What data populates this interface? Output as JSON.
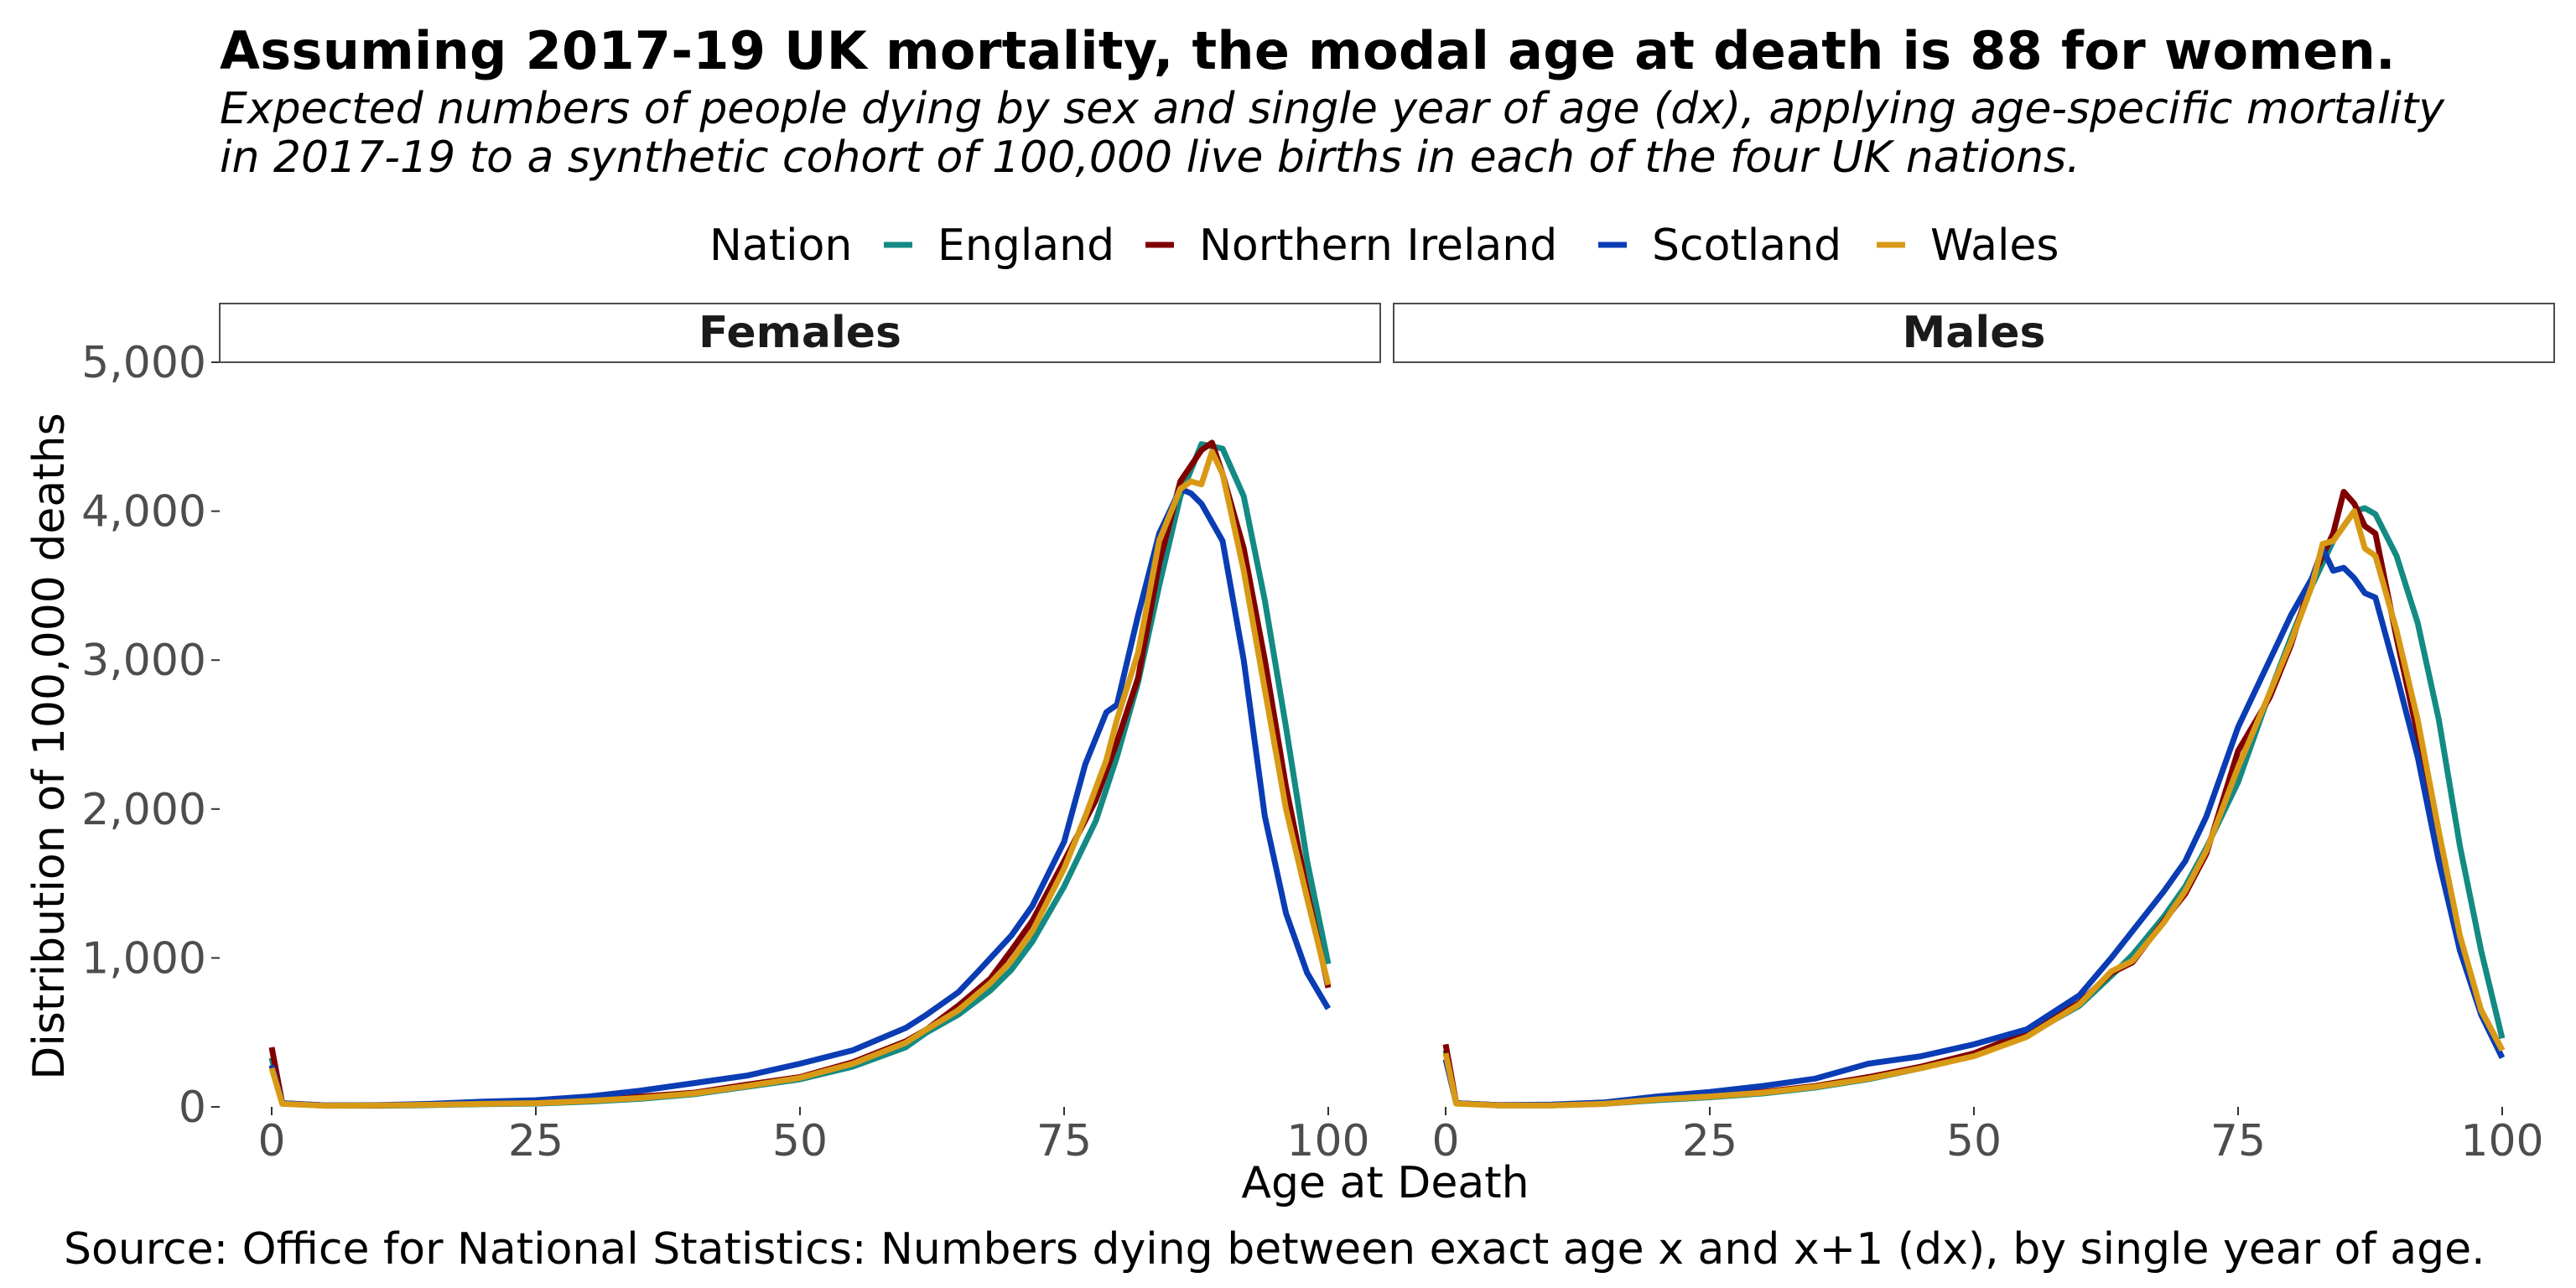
{
  "title": "Assuming 2017-19 UK mortality, the modal age at death is 88 for women.",
  "subtitle_line1": "Expected numbers of people dying by sex and single year of age (dx), applying age-specific mortality",
  "subtitle_line2": "in 2017-19 to a synthetic cohort of 100,000 live births in each of the four UK nations.",
  "caption": "Source: Office for National Statistics: Numbers dying between exact age x and x+1 (dx), by single year of age.",
  "chart_data": {
    "type": "line",
    "xlabel": "Age at Death",
    "ylabel": "Distribution of 100,000 deaths",
    "xlim": [
      0,
      100
    ],
    "ylim": [
      0,
      5000
    ],
    "x_ticks": [
      "0",
      "25",
      "50",
      "75",
      "100"
    ],
    "y_ticks": [
      "0",
      "1,000",
      "2,000",
      "3,000",
      "4,000",
      "5,000"
    ],
    "grid": false,
    "legend_title": "Nation",
    "legend_position": "top",
    "series_colors": {
      "England": "#138a83",
      "Northern Ireland": "#800000",
      "Scotland": "#0a3cb4",
      "Wales": "#d89a16"
    },
    "panels": [
      {
        "name": "Females",
        "series": [
          {
            "name": "England",
            "x": [
              0,
              1,
              5,
              10,
              15,
              20,
              25,
              30,
              35,
              40,
              45,
              50,
              55,
              60,
              62,
              65,
              68,
              70,
              72,
              75,
              78,
              80,
              82,
              84,
              86,
              88,
              90,
              92,
              94,
              96,
              98,
              100
            ],
            "values": [
              330,
              25,
              8,
              8,
              12,
              18,
              22,
              35,
              55,
              85,
              135,
              185,
              270,
              400,
              500,
              620,
              780,
              920,
              1110,
              1480,
              1920,
              2350,
              2850,
              3500,
              4100,
              4450,
              4420,
              4100,
              3400,
              2550,
              1650,
              960
            ]
          },
          {
            "name": "Northern Ireland",
            "x": [
              0,
              1,
              5,
              10,
              15,
              20,
              25,
              30,
              35,
              40,
              45,
              50,
              55,
              60,
              62,
              65,
              68,
              70,
              72,
              75,
              78,
              80,
              82,
              84,
              86,
              88,
              89,
              90,
              92,
              94,
              96,
              98,
              100
            ],
            "values": [
              400,
              25,
              10,
              10,
              15,
              25,
              30,
              45,
              70,
              95,
              150,
              200,
              300,
              440,
              520,
              680,
              860,
              1050,
              1250,
              1650,
              2060,
              2450,
              2880,
              3650,
              4200,
              4410,
              4460,
              4250,
              3750,
              3000,
              2150,
              1450,
              800
            ]
          },
          {
            "name": "Scotland",
            "x": [
              0,
              1,
              5,
              10,
              15,
              20,
              25,
              30,
              35,
              40,
              45,
              50,
              55,
              60,
              62,
              65,
              67,
              70,
              72,
              75,
              77,
              79,
              80,
              82,
              84,
              86,
              87,
              88,
              90,
              92,
              94,
              96,
              98,
              100
            ],
            "values": [
              280,
              25,
              10,
              12,
              20,
              35,
              45,
              70,
              110,
              160,
              210,
              290,
              380,
              530,
              620,
              770,
              920,
              1150,
              1350,
              1780,
              2300,
              2650,
              2700,
              3300,
              3850,
              4150,
              4120,
              4050,
              3800,
              3000,
              1950,
              1300,
              900,
              660
            ]
          },
          {
            "name": "Wales",
            "x": [
              0,
              1,
              5,
              10,
              15,
              20,
              25,
              30,
              35,
              40,
              45,
              50,
              55,
              60,
              62,
              65,
              68,
              70,
              72,
              75,
              77,
              79,
              80,
              82,
              84,
              86,
              87,
              88,
              89,
              90,
              92,
              94,
              96,
              98,
              100
            ],
            "values": [
              260,
              20,
              8,
              10,
              14,
              20,
              25,
              40,
              60,
              90,
              140,
              195,
              290,
              430,
              520,
              650,
              830,
              980,
              1180,
              1600,
              1950,
              2330,
              2600,
              3050,
              3800,
              4150,
              4200,
              4180,
              4400,
              4250,
              3600,
              2800,
              2000,
              1400,
              820
            ]
          }
        ]
      },
      {
        "name": "Males",
        "series": [
          {
            "name": "England",
            "x": [
              0,
              1,
              5,
              10,
              15,
              20,
              25,
              30,
              35,
              40,
              45,
              50,
              55,
              60,
              63,
              65,
              68,
              70,
              72,
              75,
              78,
              80,
              82,
              84,
              86,
              87,
              88,
              90,
              92,
              94,
              96,
              98,
              100
            ],
            "values": [
              380,
              25,
              10,
              10,
              20,
              45,
              65,
              90,
              130,
              185,
              260,
              350,
              480,
              680,
              880,
              1020,
              1280,
              1480,
              1740,
              2180,
              2780,
              3150,
              3500,
              3800,
              4000,
              4020,
              3980,
              3700,
              3250,
              2600,
              1750,
              1050,
              460
            ]
          },
          {
            "name": "Northern Ireland",
            "x": [
              0,
              1,
              5,
              10,
              15,
              20,
              25,
              30,
              35,
              40,
              45,
              50,
              55,
              60,
              63,
              65,
              68,
              70,
              72,
              75,
              78,
              80,
              82,
              84,
              85,
              86,
              87,
              88,
              90,
              92,
              94,
              96,
              98,
              100
            ],
            "values": [
              420,
              25,
              12,
              12,
              22,
              55,
              80,
              100,
              140,
              200,
              270,
              360,
              500,
              700,
              900,
              970,
              1250,
              1430,
              1700,
              2390,
              2750,
              3100,
              3550,
              3850,
              4130,
              4050,
              3900,
              3850,
              3150,
              2500,
              1700,
              1050,
              650,
              380
            ]
          },
          {
            "name": "Scotland",
            "x": [
              0,
              1,
              5,
              10,
              15,
              20,
              25,
              30,
              35,
              40,
              45,
              50,
              55,
              60,
              63,
              65,
              68,
              70,
              72,
              75,
              77,
              79,
              80,
              82,
              83,
              84,
              85,
              86,
              87,
              88,
              90,
              92,
              94,
              96,
              98,
              100
            ],
            "values": [
              320,
              25,
              12,
              15,
              30,
              70,
              100,
              140,
              190,
              290,
              340,
              420,
              520,
              750,
              1000,
              1180,
              1450,
              1650,
              1950,
              2550,
              2850,
              3150,
              3300,
              3550,
              3750,
              3600,
              3620,
              3550,
              3450,
              3420,
              2900,
              2350,
              1650,
              1050,
              620,
              330
            ]
          },
          {
            "name": "Wales",
            "x": [
              0,
              1,
              5,
              10,
              15,
              20,
              25,
              30,
              35,
              40,
              45,
              50,
              55,
              60,
              63,
              65,
              68,
              70,
              72,
              75,
              78,
              80,
              82,
              83,
              84,
              85,
              86,
              87,
              88,
              90,
              92,
              94,
              96,
              98,
              100
            ],
            "values": [
              360,
              22,
              10,
              10,
              20,
              50,
              70,
              95,
              135,
              190,
              260,
              340,
              470,
              690,
              910,
              980,
              1240,
              1450,
              1720,
              2280,
              2780,
              3120,
              3500,
              3780,
              3800,
              3900,
              4000,
              3750,
              3700,
              3200,
              2600,
              1850,
              1150,
              650,
              380
            ]
          }
        ]
      }
    ]
  }
}
